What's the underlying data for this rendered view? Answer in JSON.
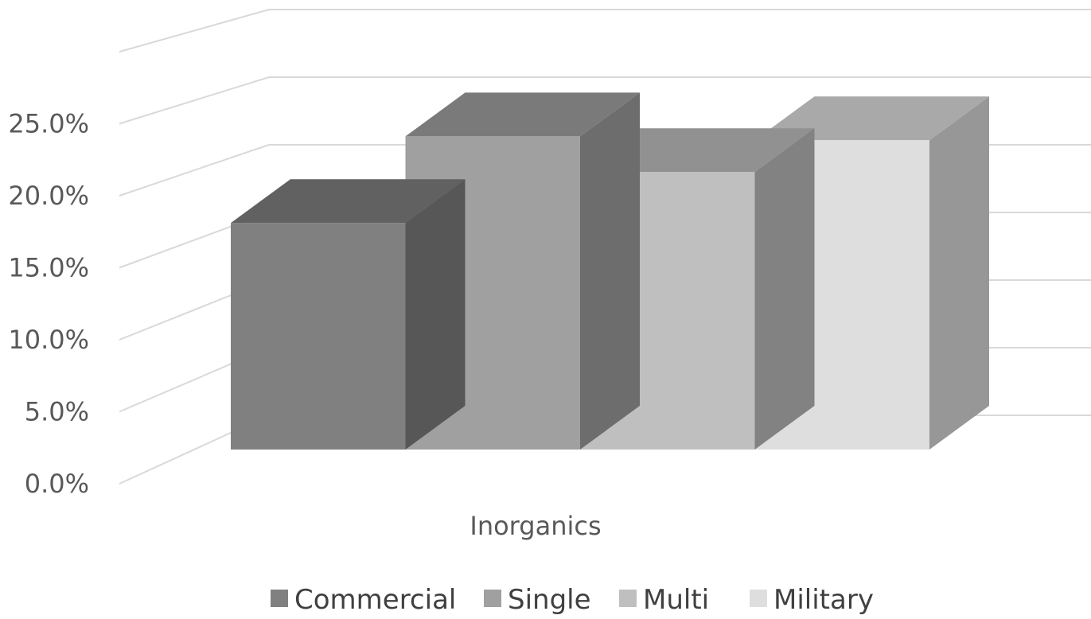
{
  "chart_data": {
    "type": "bar",
    "style": "3d-clustered-column",
    "categories": [
      "Inorganics"
    ],
    "series": [
      {
        "name": "Commercial",
        "values": [
          17.8
        ],
        "color": "#808080"
      },
      {
        "name": "Single",
        "values": [
          24.6
        ],
        "color": "#a0a0a0"
      },
      {
        "name": "Multi",
        "values": [
          21.8
        ],
        "color": "#bfbfbf"
      },
      {
        "name": "Military",
        "values": [
          24.3
        ],
        "color": "#dedede"
      }
    ],
    "y_ticks": [
      "0.0%",
      "5.0%",
      "10.0%",
      "15.0%",
      "20.0%",
      "25.0%"
    ],
    "ylim": [
      0,
      30
    ],
    "grid": true,
    "legend_position": "bottom",
    "title": "",
    "xlabel": "",
    "ylabel": ""
  }
}
